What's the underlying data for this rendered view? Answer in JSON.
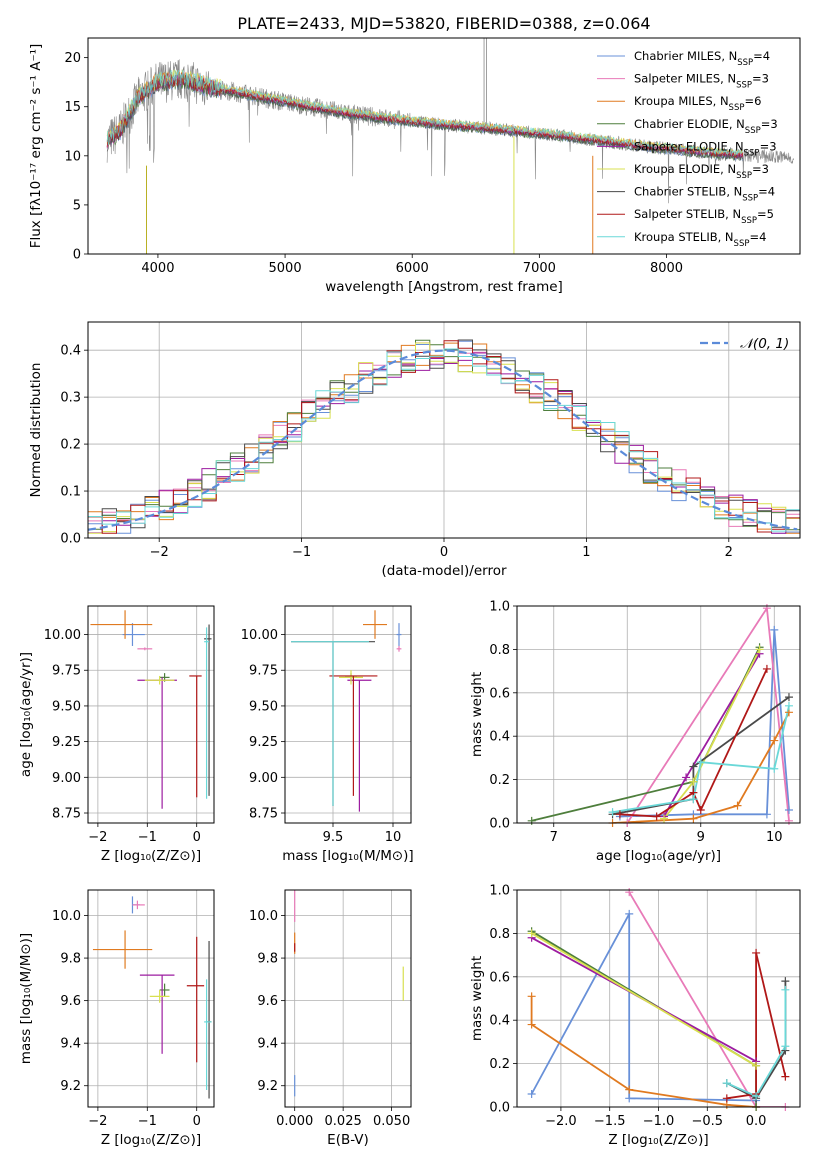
{
  "figure": {
    "title": "PLATE=2433, MJD=53820, FIBERID=0388, z=0.064"
  },
  "colors": {
    "chabrier_miles": "#6890d8",
    "salpeter_miles": "#e87ab8",
    "kroupa_miles": "#e07a20",
    "chabrier_elodie": "#4e7e3c",
    "salpeter_elodie": "#9c1ca0",
    "kroupa_elodie": "#d8e050",
    "chabrier_stelib": "#4a4a4a",
    "salpeter_stelib": "#b01818",
    "kroupa_stelib": "#6ad8d8",
    "data": "#888888",
    "normal": "#5b8bd9"
  },
  "chart_data": [
    {
      "id": "spectrum",
      "type": "line",
      "xlabel": "wavelength [Angstrom, rest frame]",
      "ylabel": "Flux [fλ10⁻¹⁷ erg cm⁻² s⁻¹ A⁻¹]",
      "xlim": [
        3450,
        9050
      ],
      "ylim": [
        0,
        22
      ],
      "xticks": [
        4000,
        5000,
        6000,
        7000,
        8000
      ],
      "yticks": [
        0,
        5,
        10,
        15,
        20
      ],
      "legend_position": "top-right",
      "legend": [
        {
          "label": "Chabrier MILES, N",
          "sub": "SSP",
          "tail": "=4",
          "key": "chabrier_miles"
        },
        {
          "label": "Salpeter MILES, N",
          "sub": "SSP",
          "tail": "=3",
          "key": "salpeter_miles"
        },
        {
          "label": "Kroupa MILES, N",
          "sub": "SSP",
          "tail": "=6",
          "key": "kroupa_miles"
        },
        {
          "label": "Chabrier ELODIE, N",
          "sub": "SSP",
          "tail": "=3",
          "key": "chabrier_elodie"
        },
        {
          "label": "Salpeter ELODIE, N",
          "sub": "SSP",
          "tail": "=3",
          "key": "salpeter_elodie"
        },
        {
          "label": "Kroupa ELODIE, N",
          "sub": "SSP",
          "tail": "=3",
          "key": "kroupa_elodie"
        },
        {
          "label": "Chabrier STELIB, N",
          "sub": "SSP",
          "tail": "=4",
          "key": "chabrier_stelib"
        },
        {
          "label": "Salpeter STELIB, N",
          "sub": "SSP",
          "tail": "=5",
          "key": "salpeter_stelib"
        },
        {
          "label": "Kroupa STELIB, N",
          "sub": "SSP",
          "tail": "=4",
          "key": "kroupa_stelib"
        }
      ],
      "continuum": {
        "x": [
          3600,
          3700,
          3850,
          4000,
          4200,
          4400,
          4600,
          4800,
          5000,
          5200,
          5500,
          5800,
          6000,
          6300,
          6600,
          6900,
          7200,
          7500,
          7800,
          8100,
          8400,
          8700,
          9000
        ],
        "y": [
          11.5,
          12.5,
          16.0,
          17.5,
          17.8,
          17.0,
          16.5,
          16.0,
          15.5,
          15.0,
          14.3,
          13.8,
          13.5,
          13.1,
          12.8,
          12.4,
          12.0,
          11.5,
          11.0,
          10.6,
          10.2,
          10.0,
          9.8
        ]
      }
    },
    {
      "id": "residuals",
      "type": "line",
      "xlabel": "(data-model)/error",
      "ylabel": "Normed distribution",
      "xlim": [
        -2.5,
        2.5
      ],
      "ylim": [
        0,
        0.46
      ],
      "xticks": [
        -2,
        -1,
        0,
        1,
        2
      ],
      "yticks": [
        0.0,
        0.1,
        0.2,
        0.3,
        0.4
      ],
      "legend_position": "upper right",
      "normal_label": "𝒩(0, 1)",
      "normal": {
        "mean": 0,
        "sigma": 1
      }
    },
    {
      "id": "age_vs_Z",
      "type": "scatter",
      "xlabel": "Z [log₁₀(Z/Z⊙)]",
      "ylabel": "age  [log₁₀(age/yr)]",
      "xlim": [
        -2.2,
        0.35
      ],
      "ylim": [
        8.68,
        10.2
      ],
      "xticks": [
        -2,
        -1,
        0
      ],
      "yticks": [
        8.75,
        9.0,
        9.25,
        9.5,
        9.75,
        10.0
      ],
      "points": [
        {
          "key": "chabrier_miles",
          "x": -1.3,
          "y": 10.0,
          "xerr": [
            0.2,
            0.25
          ],
          "yerr": [
            0.08,
            0.08
          ]
        },
        {
          "key": "salpeter_miles",
          "x": -1.05,
          "y": 9.9,
          "xerr": [
            0.15,
            0.15
          ],
          "yerr": [
            0.01,
            0.01
          ]
        },
        {
          "key": "kroupa_miles",
          "x": -1.45,
          "y": 10.07,
          "xerr": [
            0.7,
            0.55
          ],
          "yerr": [
            0.1,
            0.1
          ]
        },
        {
          "key": "chabrier_elodie",
          "x": -0.65,
          "y": 9.7,
          "xerr": [
            0.1,
            0.1
          ],
          "yerr": [
            0.03,
            0.03
          ]
        },
        {
          "key": "salpeter_elodie",
          "x": -0.7,
          "y": 9.68,
          "xerr": [
            0.5,
            0.3
          ],
          "yerr": [
            0.9,
            0.02
          ]
        },
        {
          "key": "kroupa_elodie",
          "x": -0.75,
          "y": 9.68,
          "xerr": [
            0.3,
            0.3
          ],
          "yerr": [
            0.03,
            0.03
          ]
        },
        {
          "key": "chabrier_stelib",
          "x": 0.25,
          "y": 9.97,
          "xerr": [
            0.1,
            0.05
          ],
          "yerr": [
            1.1,
            0.1
          ]
        },
        {
          "key": "salpeter_stelib",
          "x": 0.0,
          "y": 9.71,
          "xerr": [
            0.15,
            0.1
          ],
          "yerr": [
            0.85,
            0.0
          ]
        },
        {
          "key": "kroupa_stelib",
          "x": 0.2,
          "y": 9.95,
          "xerr": [
            0.05,
            0.05
          ],
          "yerr": [
            1.1,
            0.1
          ]
        }
      ]
    },
    {
      "id": "age_vs_mass",
      "type": "scatter",
      "xlabel": "mass [log₁₀(M/M⊙)]",
      "ylabel": "",
      "xlim": [
        9.1,
        10.15
      ],
      "ylim": [
        8.68,
        10.2
      ],
      "xticks": [
        9.5,
        10.0
      ],
      "yticks": [
        8.75,
        9.0,
        9.25,
        9.5,
        9.75,
        10.0
      ],
      "points": [
        {
          "key": "chabrier_miles",
          "x": 10.05,
          "y": 10.0,
          "xerr": [
            0.02,
            0.02
          ],
          "yerr": [
            0.08,
            0.08
          ]
        },
        {
          "key": "salpeter_miles",
          "x": 10.05,
          "y": 9.9,
          "xerr": [
            0.02,
            0.02
          ],
          "yerr": [
            0.02,
            0.02
          ]
        },
        {
          "key": "kroupa_miles",
          "x": 9.85,
          "y": 10.07,
          "xerr": [
            0.1,
            0.1
          ],
          "yerr": [
            0.1,
            0.1
          ]
        },
        {
          "key": "chabrier_elodie",
          "x": 9.65,
          "y": 9.7,
          "xerr": [
            0.05,
            0.05
          ],
          "yerr": [
            0.03,
            0.03
          ]
        },
        {
          "key": "salpeter_elodie",
          "x": 9.72,
          "y": 9.68,
          "xerr": [
            0.1,
            0.1
          ],
          "yerr": [
            0.92,
            0.0
          ]
        },
        {
          "key": "kroupa_elodie",
          "x": 9.65,
          "y": 9.7,
          "xerr": [
            0.1,
            0.1
          ],
          "yerr": [
            0.05,
            0.05
          ]
        },
        {
          "key": "chabrier_stelib",
          "x": 9.5,
          "y": 9.95,
          "xerr": [
            0.35,
            0.35
          ],
          "yerr": [
            1.15,
            0.0
          ]
        },
        {
          "key": "salpeter_stelib",
          "x": 9.67,
          "y": 9.71,
          "xerr": [
            0.2,
            0.2
          ],
          "yerr": [
            0.84,
            0.0
          ]
        },
        {
          "key": "kroupa_stelib",
          "x": 9.5,
          "y": 9.95,
          "xerr": [
            0.35,
            0.3
          ],
          "yerr": [
            1.15,
            0.0
          ]
        }
      ]
    },
    {
      "id": "massweight_vs_age",
      "type": "line",
      "xlabel": "age  [log₁₀(age/yr)]",
      "ylabel": "mass weight",
      "xlim": [
        6.5,
        10.35
      ],
      "ylim": [
        0,
        1.0
      ],
      "xticks": [
        7,
        8,
        9,
        10
      ],
      "yticks": [
        0.0,
        0.2,
        0.4,
        0.6,
        0.8,
        1.0
      ],
      "series": [
        {
          "key": "chabrier_miles",
          "x": [
            7.9,
            8.9,
            9.9,
            10.0,
            10.2
          ],
          "y": [
            0.03,
            0.04,
            0.04,
            0.89,
            0.06
          ]
        },
        {
          "key": "salpeter_miles",
          "x": [
            8.0,
            9.9,
            10.2
          ],
          "y": [
            0.0,
            0.99,
            0.01
          ]
        },
        {
          "key": "kroupa_miles",
          "x": [
            7.8,
            8.9,
            9.5,
            10.0,
            10.2
          ],
          "y": [
            0.0,
            0.02,
            0.08,
            0.38,
            0.51
          ]
        },
        {
          "key": "chabrier_elodie",
          "x": [
            6.7,
            8.9,
            9.8
          ],
          "y": [
            0.01,
            0.19,
            0.81
          ]
        },
        {
          "key": "salpeter_elodie",
          "x": [
            8.5,
            8.8,
            9.8
          ],
          "y": [
            0.03,
            0.21,
            0.78
          ]
        },
        {
          "key": "kroupa_elodie",
          "x": [
            8.5,
            8.9,
            9.8
          ],
          "y": [
            0.02,
            0.19,
            0.8
          ]
        },
        {
          "key": "chabrier_stelib",
          "x": [
            7.8,
            8.9,
            8.9,
            10.2
          ],
          "y": [
            0.04,
            0.11,
            0.26,
            0.58
          ]
        },
        {
          "key": "salpeter_stelib",
          "x": [
            7.9,
            8.4,
            8.9,
            9.0,
            9.9
          ],
          "y": [
            0.04,
            0.03,
            0.14,
            0.06,
            0.71
          ]
        },
        {
          "key": "kroupa_stelib",
          "x": [
            7.8,
            8.9,
            9.0,
            10.0,
            10.2
          ],
          "y": [
            0.05,
            0.11,
            0.28,
            0.25,
            0.54
          ]
        }
      ]
    },
    {
      "id": "mass_vs_Z",
      "type": "scatter",
      "xlabel": "Z [log₁₀(Z/Z⊙)]",
      "ylabel": "mass [log₁₀(M/M⊙)]",
      "xlim": [
        -2.2,
        0.35
      ],
      "ylim": [
        9.1,
        10.12
      ],
      "xticks": [
        -2,
        -1,
        0
      ],
      "yticks": [
        9.2,
        9.4,
        9.6,
        9.8,
        10.0
      ],
      "points": [
        {
          "key": "chabrier_miles",
          "x": -1.3,
          "y": 10.05,
          "xerr": [
            0.0,
            0.15
          ],
          "yerr": [
            0.04,
            0.04
          ]
        },
        {
          "key": "salpeter_miles",
          "x": -1.2,
          "y": 10.05,
          "xerr": [
            0.1,
            0.15
          ],
          "yerr": [
            0.02,
            0.02
          ]
        },
        {
          "key": "kroupa_miles",
          "x": -1.45,
          "y": 9.84,
          "xerr": [
            0.65,
            0.55
          ],
          "yerr": [
            0.09,
            0.09
          ]
        },
        {
          "key": "chabrier_elodie",
          "x": -0.65,
          "y": 9.65,
          "xerr": [
            0.1,
            0.1
          ],
          "yerr": [
            0.03,
            0.03
          ]
        },
        {
          "key": "salpeter_elodie",
          "x": -0.7,
          "y": 9.72,
          "xerr": [
            0.45,
            0.25
          ],
          "yerr": [
            0.37,
            0.0
          ]
        },
        {
          "key": "kroupa_elodie",
          "x": -0.75,
          "y": 9.62,
          "xerr": [
            0.2,
            0.2
          ],
          "yerr": [
            0.03,
            0.03
          ]
        },
        {
          "key": "chabrier_stelib",
          "x": 0.25,
          "y": 9.5,
          "xerr": [
            0.05,
            0.05
          ],
          "yerr": [
            0.36,
            0.38
          ]
        },
        {
          "key": "salpeter_stelib",
          "x": 0.0,
          "y": 9.67,
          "xerr": [
            0.2,
            0.15
          ],
          "yerr": [
            0.36,
            0.23
          ]
        },
        {
          "key": "kroupa_stelib",
          "x": 0.2,
          "y": 9.5,
          "xerr": [
            0.05,
            0.1
          ],
          "yerr": [
            0.32,
            0.2
          ]
        }
      ]
    },
    {
      "id": "mass_vs_ebv",
      "type": "scatter",
      "xlabel": "E(B-V)",
      "ylabel": "",
      "xlim": [
        -0.005,
        0.06
      ],
      "ylim": [
        9.1,
        10.12
      ],
      "xticks": [
        0.0,
        0.025,
        0.05
      ],
      "tick_labels": [
        "0.000",
        "0.025",
        "0.050"
      ],
      "yticks": [
        9.2,
        9.4,
        9.6,
        9.8,
        10.0
      ],
      "points": [
        {
          "key": "salpeter_miles",
          "x": 0.0,
          "y": 10.05,
          "xerr": [
            0.0,
            0.0
          ],
          "yerr": [
            0.08,
            0.08
          ]
        },
        {
          "key": "kroupa_miles",
          "x": 0.0,
          "y": 9.87,
          "xerr": [
            0.0,
            0.0
          ],
          "yerr": [
            0.05,
            0.05
          ]
        },
        {
          "key": "salpeter_stelib",
          "x": 0.0,
          "y": 9.85,
          "xerr": [
            0.0,
            0.0
          ],
          "yerr": [
            0.02,
            0.02
          ]
        },
        {
          "key": "chabrier_miles",
          "x": 0.0,
          "y": 9.2,
          "xerr": [
            0.0,
            0.0
          ],
          "yerr": [
            0.05,
            0.05
          ]
        },
        {
          "key": "kroupa_elodie",
          "x": 0.056,
          "y": 9.68,
          "xerr": [
            0.0,
            0.0
          ],
          "yerr": [
            0.08,
            0.08
          ]
        }
      ]
    },
    {
      "id": "massweight_vs_Z",
      "type": "line",
      "xlabel": "Z [log₁₀(Z/Z⊙)]",
      "ylabel": "mass weight",
      "xlim": [
        -2.45,
        0.45
      ],
      "ylim": [
        0,
        1.0
      ],
      "xticks": [
        -2.0,
        -1.5,
        -1.0,
        -0.5,
        0.0
      ],
      "tick_labels": [
        "−2.0",
        "−1.5",
        "−1.0",
        "−0.5",
        "0.0"
      ],
      "yticks": [
        0.0,
        0.2,
        0.4,
        0.6,
        0.8,
        1.0
      ],
      "series": [
        {
          "key": "chabrier_miles",
          "x": [
            -2.3,
            -1.3,
            -1.3,
            0.0
          ],
          "y": [
            0.06,
            0.89,
            0.04,
            0.03
          ]
        },
        {
          "key": "salpeter_miles",
          "x": [
            -1.3,
            0.0,
            0.3
          ],
          "y": [
            0.99,
            0.0,
            0.0
          ]
        },
        {
          "key": "kroupa_miles",
          "x": [
            -2.3,
            -2.3,
            -1.3,
            -0.3,
            0.0
          ],
          "y": [
            0.51,
            0.38,
            0.08,
            0.01,
            0.0
          ]
        },
        {
          "key": "chabrier_elodie",
          "x": [
            -2.3,
            0.0,
            0.0
          ],
          "y": [
            0.81,
            0.19,
            0.0
          ]
        },
        {
          "key": "salpeter_elodie",
          "x": [
            -2.3,
            0.0
          ],
          "y": [
            0.78,
            0.21
          ]
        },
        {
          "key": "kroupa_elodie",
          "x": [
            -2.3,
            0.0
          ],
          "y": [
            0.8,
            0.19
          ]
        },
        {
          "key": "chabrier_stelib",
          "x": [
            -0.3,
            0.0,
            0.3,
            0.3
          ],
          "y": [
            0.11,
            0.04,
            0.26,
            0.58
          ]
        },
        {
          "key": "salpeter_stelib",
          "x": [
            -0.3,
            0.0,
            0.0,
            0.3
          ],
          "y": [
            0.04,
            0.06,
            0.71,
            0.14
          ]
        },
        {
          "key": "kroupa_stelib",
          "x": [
            -0.3,
            0.0,
            0.3,
            0.3
          ],
          "y": [
            0.11,
            0.05,
            0.28,
            0.54
          ]
        }
      ]
    }
  ]
}
